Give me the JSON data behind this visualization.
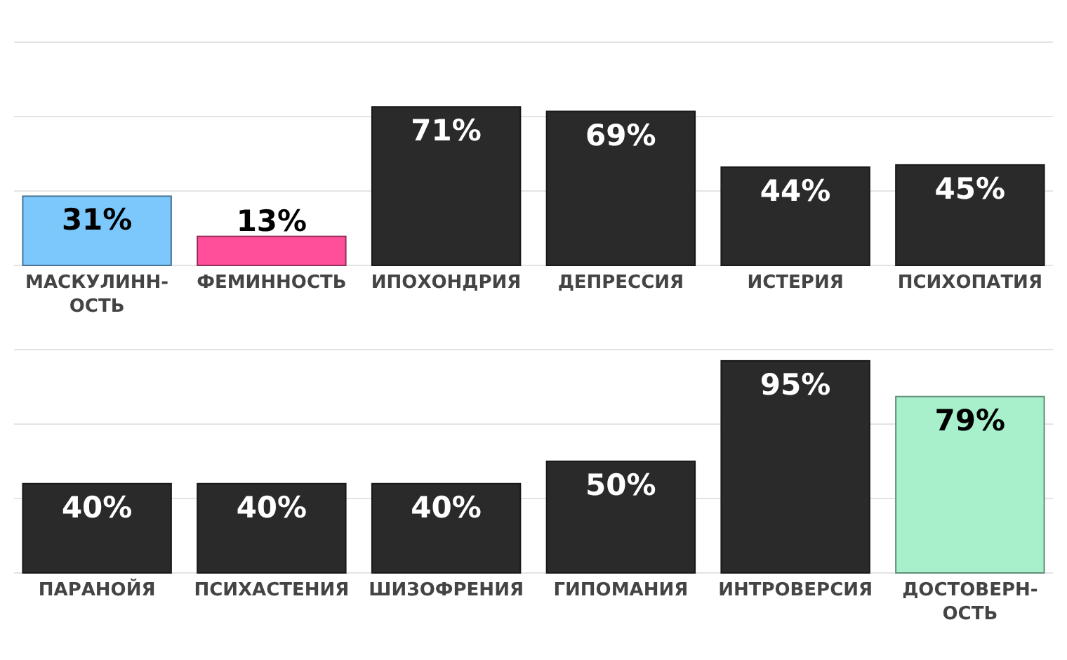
{
  "chart_data": [
    {
      "type": "bar",
      "categories": [
        "МАСКУЛИНН-ОСТЬ",
        "ФЕМИННОСТЬ",
        "ИПОХОНДРИЯ",
        "ДЕПРЕССИЯ",
        "ИСТЕРИЯ",
        "ПСИХОПАТИЯ"
      ],
      "values": [
        31,
        13,
        71,
        69,
        44,
        45
      ],
      "value_labels": [
        "31%",
        "13%",
        "71%",
        "69%",
        "44%",
        "45%"
      ],
      "colors": [
        "#7cc8fc",
        "#ff4f9a",
        "#2a2a2a",
        "#2a2a2a",
        "#2a2a2a",
        "#2a2a2a"
      ],
      "ylim": [
        0,
        100
      ],
      "yticks": [
        {
          "value": 0,
          "label": null
        },
        {
          "value": 33.3,
          "label": null
        },
        {
          "value": 66.7,
          "label": null
        },
        {
          "value": 100,
          "label": null
        }
      ],
      "grid": "y",
      "tick_labels": "x"
    },
    {
      "type": "bar",
      "categories": [
        "ПАРАНОЙЯ",
        "ПСИХАСТЕНИЯ",
        "ШИЗОФРЕНИЯ",
        "ГИПОМАНИЯ",
        "ИНТРОВЕРСИЯ",
        "ДОСТОВЕРН-ОСТЬ"
      ],
      "values": [
        40,
        40,
        40,
        50,
        95,
        79
      ],
      "value_labels": [
        "40%",
        "40%",
        "40%",
        "50%",
        "95%",
        "79%"
      ],
      "colors": [
        "#2a2a2a",
        "#2a2a2a",
        "#2a2a2a",
        "#2a2a2a",
        "#2a2a2a",
        "#a8f0cc"
      ],
      "ylim": [
        0,
        100
      ],
      "yticks": [
        {
          "value": 0,
          "label": null
        },
        {
          "value": 33.3,
          "label": null
        },
        {
          "value": 66.7,
          "label": null
        },
        {
          "value": 100,
          "label": null
        }
      ],
      "grid": "y",
      "tick_labels": "x"
    }
  ]
}
